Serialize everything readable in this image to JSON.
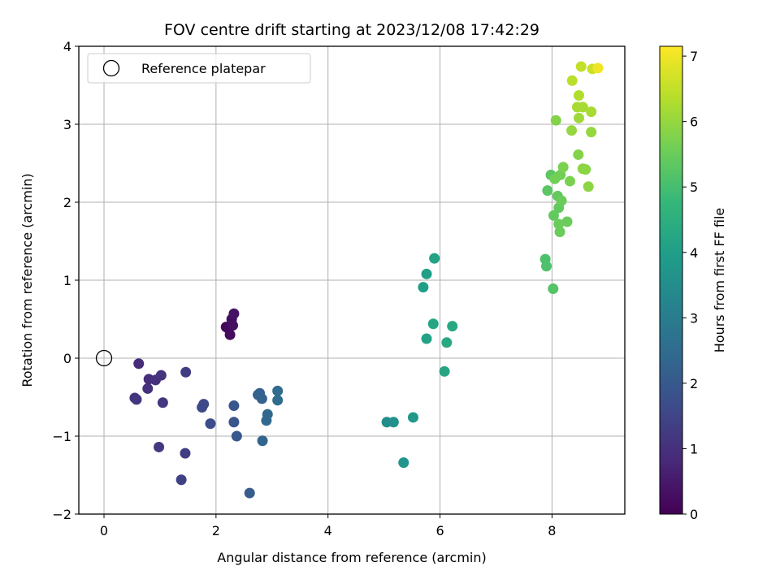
{
  "chart_data": {
    "type": "scatter",
    "title": "FOV centre drift starting at 2023/12/08 17:42:29",
    "xlabel": "Angular distance from reference (arcmin)",
    "ylabel": "Rotation from reference (arcmin)",
    "xlim": [
      -0.45,
      9.3
    ],
    "ylim": [
      -2,
      4
    ],
    "x_ticks": [
      0,
      2,
      4,
      6,
      8
    ],
    "y_ticks": [
      -2,
      -1,
      0,
      1,
      2,
      3,
      4
    ],
    "x_tick_labels": [
      "0",
      "2",
      "4",
      "6",
      "8"
    ],
    "y_tick_labels": [
      "−2",
      "−1",
      "0",
      "1",
      "2",
      "3",
      "4"
    ],
    "grid": true,
    "legend_position": "top-left",
    "legend": [
      {
        "label": "Reference platepar",
        "marker": "open-circle"
      }
    ],
    "reference_point": {
      "x": 0,
      "y": 0
    },
    "colorbar": {
      "label": "Hours from first FF file",
      "range": [
        0,
        7.15
      ],
      "ticks": [
        0,
        1,
        2,
        3,
        4,
        5,
        6,
        7
      ],
      "tick_labels": [
        "0",
        "1",
        "2",
        "3",
        "4",
        "5",
        "6",
        "7"
      ],
      "colormap": "viridis",
      "colors": [
        "#440154",
        "#482878",
        "#3e4989",
        "#31688e",
        "#26828e",
        "#1f9e89",
        "#35b779",
        "#6ece58",
        "#b5de2b",
        "#fde725"
      ]
    },
    "points": [
      {
        "x": 2.18,
        "y": 0.4,
        "c": 0.1
      },
      {
        "x": 2.22,
        "y": 0.38,
        "c": 0.15
      },
      {
        "x": 2.25,
        "y": 0.3,
        "c": 0.2
      },
      {
        "x": 2.28,
        "y": 0.5,
        "c": 0.25
      },
      {
        "x": 2.3,
        "y": 0.42,
        "c": 0.3
      },
      {
        "x": 2.32,
        "y": 0.57,
        "c": 0.35
      },
      {
        "x": 0.62,
        "y": -0.07,
        "c": 0.9
      },
      {
        "x": 0.8,
        "y": -0.27,
        "c": 0.95
      },
      {
        "x": 0.92,
        "y": -0.28,
        "c": 1.0
      },
      {
        "x": 1.02,
        "y": -0.22,
        "c": 1.05
      },
      {
        "x": 0.78,
        "y": -0.39,
        "c": 1.0
      },
      {
        "x": 0.55,
        "y": -0.51,
        "c": 1.1
      },
      {
        "x": 0.58,
        "y": -0.53,
        "c": 1.1
      },
      {
        "x": 1.05,
        "y": -0.57,
        "c": 1.15
      },
      {
        "x": 1.46,
        "y": -0.18,
        "c": 1.3
      },
      {
        "x": 0.98,
        "y": -1.14,
        "c": 1.2
      },
      {
        "x": 1.45,
        "y": -1.22,
        "c": 1.3
      },
      {
        "x": 1.38,
        "y": -1.56,
        "c": 1.4
      },
      {
        "x": 1.75,
        "y": -0.63,
        "c": 1.6
      },
      {
        "x": 1.78,
        "y": -0.59,
        "c": 1.6
      },
      {
        "x": 1.9,
        "y": -0.84,
        "c": 1.7
      },
      {
        "x": 2.32,
        "y": -0.61,
        "c": 1.9
      },
      {
        "x": 2.32,
        "y": -0.82,
        "c": 1.9
      },
      {
        "x": 2.37,
        "y": -1.0,
        "c": 2.0
      },
      {
        "x": 2.6,
        "y": -1.73,
        "c": 2.1
      },
      {
        "x": 2.75,
        "y": -0.47,
        "c": 2.2
      },
      {
        "x": 2.78,
        "y": -0.45,
        "c": 2.2
      },
      {
        "x": 2.82,
        "y": -0.52,
        "c": 2.2
      },
      {
        "x": 2.83,
        "y": -1.06,
        "c": 2.3
      },
      {
        "x": 2.9,
        "y": -0.8,
        "c": 2.4
      },
      {
        "x": 2.92,
        "y": -0.72,
        "c": 2.4
      },
      {
        "x": 3.1,
        "y": -0.42,
        "c": 2.5
      },
      {
        "x": 3.1,
        "y": -0.54,
        "c": 2.5
      },
      {
        "x": 5.05,
        "y": -0.82,
        "c": 3.5
      },
      {
        "x": 5.17,
        "y": -0.82,
        "c": 3.6
      },
      {
        "x": 5.35,
        "y": -1.34,
        "c": 3.7
      },
      {
        "x": 5.52,
        "y": -0.76,
        "c": 3.8
      },
      {
        "x": 5.7,
        "y": 0.91,
        "c": 4.0
      },
      {
        "x": 5.76,
        "y": 1.08,
        "c": 4.0
      },
      {
        "x": 5.9,
        "y": 1.28,
        "c": 4.1
      },
      {
        "x": 5.76,
        "y": 0.25,
        "c": 4.1
      },
      {
        "x": 5.88,
        "y": 0.44,
        "c": 4.2
      },
      {
        "x": 6.08,
        "y": -0.17,
        "c": 4.2
      },
      {
        "x": 6.12,
        "y": 0.2,
        "c": 4.3
      },
      {
        "x": 6.22,
        "y": 0.41,
        "c": 4.3
      },
      {
        "x": 7.88,
        "y": 1.27,
        "c": 5.1
      },
      {
        "x": 7.9,
        "y": 1.18,
        "c": 5.1
      },
      {
        "x": 8.02,
        "y": 0.89,
        "c": 5.2
      },
      {
        "x": 7.92,
        "y": 2.15,
        "c": 5.3
      },
      {
        "x": 7.98,
        "y": 2.35,
        "c": 5.3
      },
      {
        "x": 8.03,
        "y": 1.83,
        "c": 5.4
      },
      {
        "x": 8.1,
        "y": 2.08,
        "c": 5.4
      },
      {
        "x": 8.12,
        "y": 1.93,
        "c": 5.4
      },
      {
        "x": 8.12,
        "y": 1.72,
        "c": 5.5
      },
      {
        "x": 8.14,
        "y": 1.62,
        "c": 5.5
      },
      {
        "x": 8.17,
        "y": 2.02,
        "c": 5.5
      },
      {
        "x": 8.27,
        "y": 1.75,
        "c": 5.5
      },
      {
        "x": 8.05,
        "y": 2.3,
        "c": 5.6
      },
      {
        "x": 8.15,
        "y": 2.35,
        "c": 5.6
      },
      {
        "x": 8.2,
        "y": 2.45,
        "c": 5.7
      },
      {
        "x": 8.32,
        "y": 2.27,
        "c": 5.7
      },
      {
        "x": 8.07,
        "y": 3.05,
        "c": 5.8
      },
      {
        "x": 8.47,
        "y": 2.61,
        "c": 5.8
      },
      {
        "x": 8.55,
        "y": 2.43,
        "c": 5.9
      },
      {
        "x": 8.6,
        "y": 2.42,
        "c": 5.9
      },
      {
        "x": 8.65,
        "y": 2.2,
        "c": 5.9
      },
      {
        "x": 8.35,
        "y": 2.92,
        "c": 6.0
      },
      {
        "x": 8.7,
        "y": 2.9,
        "c": 6.0
      },
      {
        "x": 8.48,
        "y": 3.08,
        "c": 6.1
      },
      {
        "x": 8.45,
        "y": 3.22,
        "c": 6.2
      },
      {
        "x": 8.55,
        "y": 3.22,
        "c": 6.2
      },
      {
        "x": 8.7,
        "y": 3.16,
        "c": 6.2
      },
      {
        "x": 8.48,
        "y": 3.37,
        "c": 6.3
      },
      {
        "x": 8.36,
        "y": 3.56,
        "c": 6.4
      },
      {
        "x": 8.52,
        "y": 3.74,
        "c": 6.5
      },
      {
        "x": 8.72,
        "y": 3.71,
        "c": 6.6
      },
      {
        "x": 8.82,
        "y": 3.72,
        "c": 7.0
      }
    ]
  }
}
